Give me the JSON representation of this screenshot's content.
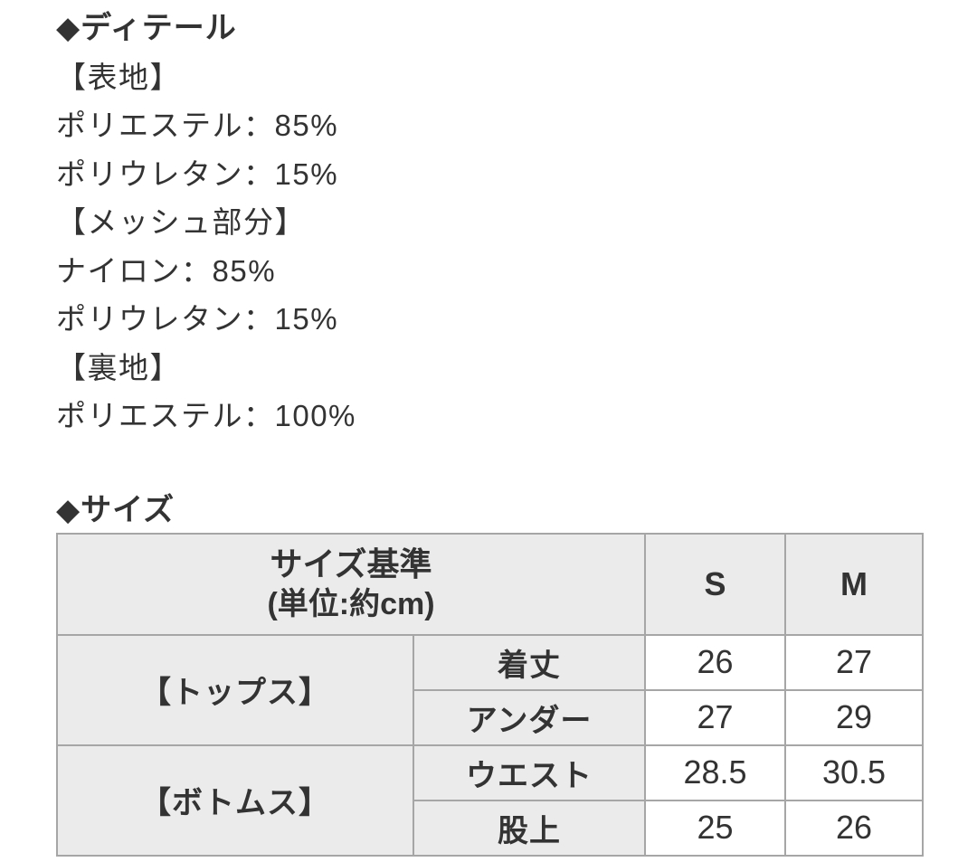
{
  "colors": {
    "page_bg": "#ffffff",
    "text": "#333333",
    "table_border": "#a6a6a6",
    "header_cell_bg": "#ebebeb",
    "value_cell_bg": "#ffffff"
  },
  "details": {
    "bullet": "◆",
    "heading": "ディテール",
    "lines": [
      "【表地】",
      "ポリエステル：85%",
      "ポリウレタン：15%",
      "【メッシュ部分】",
      "ナイロン：85%",
      "ポリウレタン：15%",
      "【裏地】",
      "ポリエステル：100%"
    ]
  },
  "size": {
    "bullet": "◆",
    "heading": "サイズ",
    "table": {
      "criteria_title": "サイズ基準",
      "criteria_unit": "(単位:約cm)",
      "size_columns": [
        "S",
        "M"
      ],
      "groups": [
        {
          "name": "【トップス】",
          "rows": [
            {
              "label": "着丈",
              "values": [
                "26",
                "27"
              ]
            },
            {
              "label": "アンダー",
              "values": [
                "27",
                "29"
              ]
            }
          ]
        },
        {
          "name": "【ボトムス】",
          "rows": [
            {
              "label": "ウエスト",
              "values": [
                "28.5",
                "30.5"
              ]
            },
            {
              "label": "股上",
              "values": [
                "25",
                "26"
              ]
            }
          ]
        }
      ]
    }
  }
}
